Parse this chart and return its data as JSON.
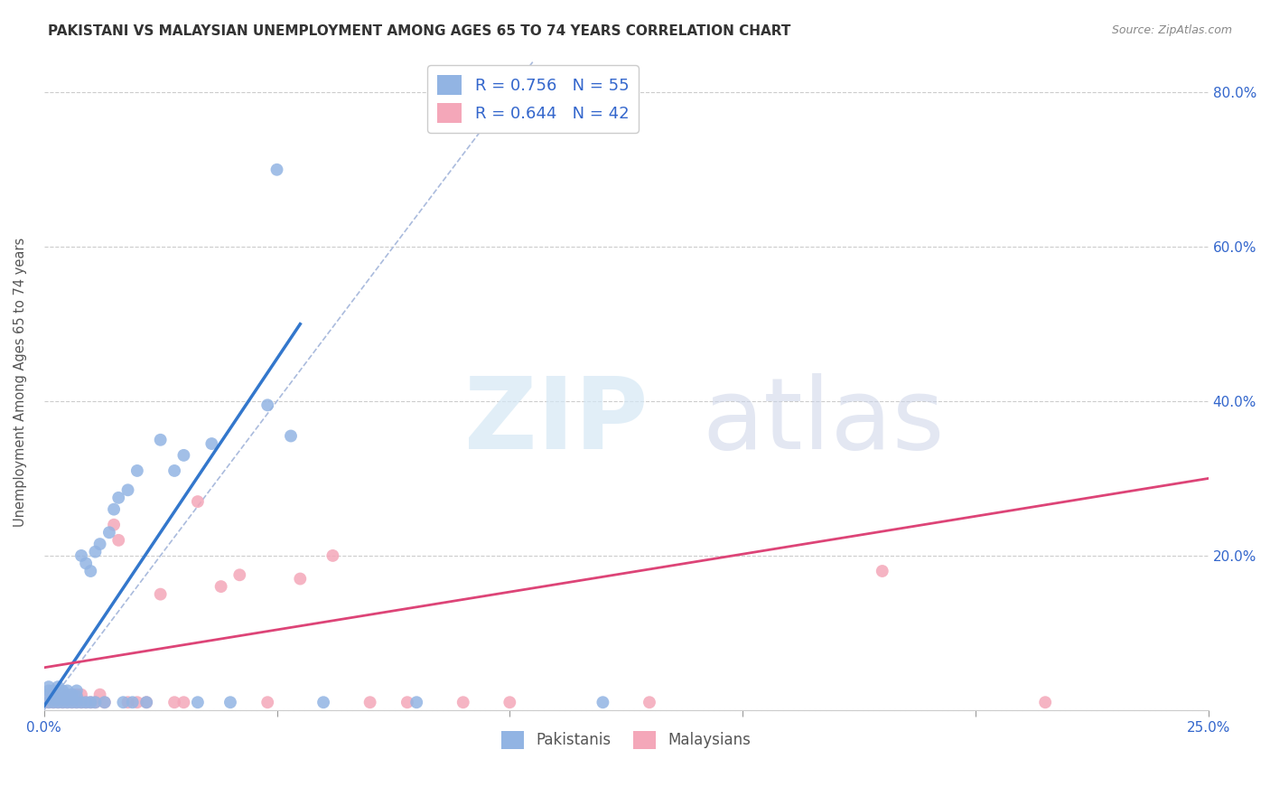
{
  "title": "PAKISTANI VS MALAYSIAN UNEMPLOYMENT AMONG AGES 65 TO 74 YEARS CORRELATION CHART",
  "source": "Source: ZipAtlas.com",
  "ylabel": "Unemployment Among Ages 65 to 74 years",
  "xlim": [
    0,
    0.25
  ],
  "ylim": [
    0,
    0.85
  ],
  "pakistani_color": "#92b4e3",
  "malaysian_color": "#f4a7b9",
  "pakistani_R": 0.756,
  "pakistani_N": 55,
  "malaysian_R": 0.644,
  "malaysian_N": 42,
  "blue_line_color": "#3377cc",
  "pink_line_color": "#dd4477",
  "ref_line_color": "#aabbdd",
  "legend_label_blue": "Pakistanis",
  "legend_label_pink": "Malaysians",
  "blue_line_x": [
    0.0,
    0.055
  ],
  "blue_line_y": [
    0.005,
    0.5
  ],
  "pink_line_x": [
    0.0,
    0.25
  ],
  "pink_line_y": [
    0.055,
    0.3
  ],
  "ref_line_x": [
    0.0,
    0.105
  ],
  "ref_line_y": [
    0.0,
    0.84
  ],
  "pakistani_x": [
    0.001,
    0.001,
    0.001,
    0.001,
    0.002,
    0.002,
    0.002,
    0.002,
    0.003,
    0.003,
    0.003,
    0.003,
    0.004,
    0.004,
    0.004,
    0.004,
    0.005,
    0.005,
    0.005,
    0.006,
    0.006,
    0.006,
    0.007,
    0.007,
    0.007,
    0.008,
    0.008,
    0.009,
    0.009,
    0.01,
    0.01,
    0.011,
    0.011,
    0.012,
    0.013,
    0.014,
    0.015,
    0.016,
    0.017,
    0.018,
    0.019,
    0.02,
    0.022,
    0.025,
    0.028,
    0.03,
    0.033,
    0.036,
    0.04,
    0.048,
    0.05,
    0.053,
    0.06,
    0.08,
    0.12
  ],
  "pakistani_y": [
    0.01,
    0.02,
    0.025,
    0.03,
    0.01,
    0.015,
    0.02,
    0.025,
    0.01,
    0.015,
    0.02,
    0.03,
    0.01,
    0.015,
    0.02,
    0.025,
    0.01,
    0.015,
    0.025,
    0.01,
    0.015,
    0.02,
    0.01,
    0.018,
    0.025,
    0.01,
    0.2,
    0.01,
    0.19,
    0.01,
    0.18,
    0.01,
    0.205,
    0.215,
    0.01,
    0.23,
    0.26,
    0.275,
    0.01,
    0.285,
    0.01,
    0.31,
    0.01,
    0.35,
    0.31,
    0.33,
    0.01,
    0.345,
    0.01,
    0.395,
    0.7,
    0.355,
    0.01,
    0.01,
    0.01
  ],
  "malaysian_x": [
    0.001,
    0.001,
    0.002,
    0.002,
    0.003,
    0.003,
    0.004,
    0.004,
    0.005,
    0.005,
    0.006,
    0.006,
    0.007,
    0.007,
    0.008,
    0.008,
    0.009,
    0.01,
    0.011,
    0.012,
    0.013,
    0.015,
    0.016,
    0.018,
    0.02,
    0.022,
    0.025,
    0.028,
    0.03,
    0.033,
    0.038,
    0.042,
    0.048,
    0.055,
    0.062,
    0.07,
    0.078,
    0.09,
    0.1,
    0.13,
    0.18,
    0.215
  ],
  "malaysian_y": [
    0.01,
    0.02,
    0.01,
    0.02,
    0.01,
    0.015,
    0.01,
    0.02,
    0.01,
    0.018,
    0.01,
    0.02,
    0.01,
    0.02,
    0.01,
    0.02,
    0.01,
    0.01,
    0.01,
    0.02,
    0.01,
    0.24,
    0.22,
    0.01,
    0.01,
    0.01,
    0.15,
    0.01,
    0.01,
    0.27,
    0.16,
    0.175,
    0.01,
    0.17,
    0.2,
    0.01,
    0.01,
    0.01,
    0.01,
    0.01,
    0.18,
    0.01
  ]
}
